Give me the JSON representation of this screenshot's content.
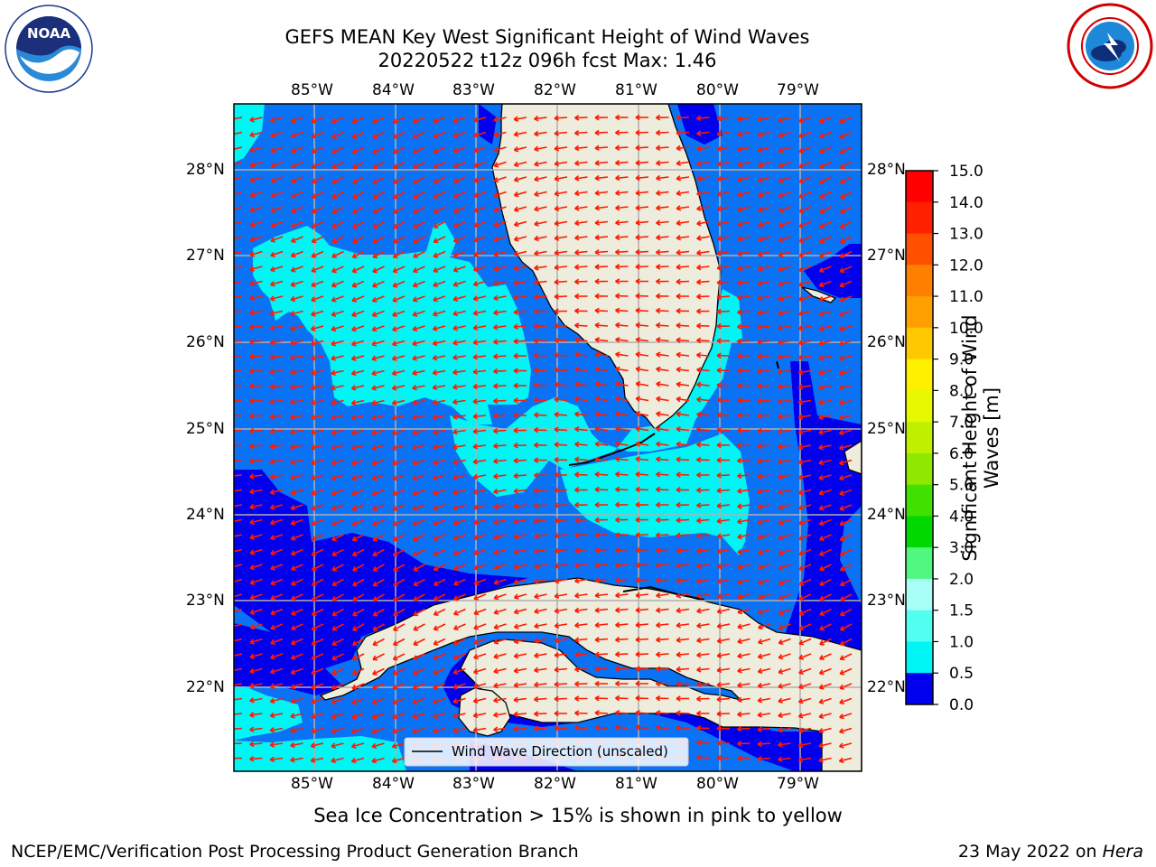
{
  "title": {
    "line1": "GEFS MEAN Key West Significant Height of Wind Waves",
    "line2": "20220522 t12z 096h fcst   Max: 1.46"
  },
  "logos": {
    "noaa": "NOAA",
    "noaa_ring": "NATIONAL OCEANIC AND ATMOSPHERIC ADMINISTRATION · U.S. DEPARTMENT OF COMMERCE",
    "nws_ring": "NATIONAL WEATHER SERVICE"
  },
  "map": {
    "lon_ticks": [
      "85°W",
      "84°W",
      "83°W",
      "82°W",
      "81°W",
      "80°W",
      "79°W"
    ],
    "lat_ticks": [
      "28°N",
      "27°N",
      "26°N",
      "25°N",
      "24°N",
      "23°N",
      "22°N"
    ],
    "legend_label": "Wind Wave Direction (unscaled)",
    "colors": {
      "band_0_0_5": "#0000ee",
      "band_0_5_1_0": "#0a73f5",
      "band_1_0_1_5": "#00f5f5",
      "land": "#eeecdc",
      "arrow": "#ff0000",
      "grid": "#b0b0b0"
    }
  },
  "colorbar": {
    "label": "Significant Height of Wind Waves [m]",
    "ticks": [
      "15.0",
      "14.0",
      "13.0",
      "12.0",
      "11.0",
      "10.0",
      "9.0",
      "8.0",
      "7.0",
      "6.0",
      "5.0",
      "4.0",
      "3.0",
      "2.0",
      "1.5",
      "1.0",
      "0.5",
      "0.0"
    ],
    "colors": [
      "#ff0000",
      "#ff2000",
      "#ff5000",
      "#ff8000",
      "#ffa000",
      "#ffc800",
      "#fff000",
      "#e8f800",
      "#c0f000",
      "#90e800",
      "#40e000",
      "#00d800",
      "#50f880",
      "#a8fff8",
      "#50fff0",
      "#00f5f5",
      "#0a73f5",
      "#0000ee"
    ]
  },
  "footer": {
    "note": "Sea Ice Concentration > 15% is shown in pink to yellow",
    "credit": "NCEP/EMC/Verification Post Processing Product Generation Branch",
    "date": "23 May 2022 on ",
    "machine": "Hera"
  }
}
